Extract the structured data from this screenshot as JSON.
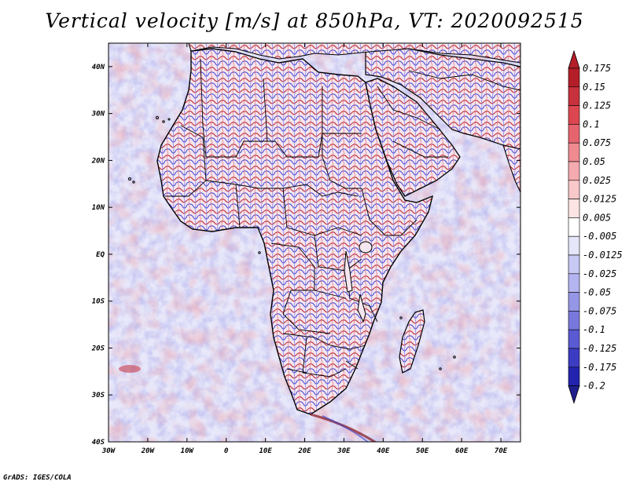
{
  "title": "Vertical velocity [m/s] at 850hPa, VT: 2020092515",
  "footer": "GrADS: IGES/COLA",
  "map": {
    "region": "Africa",
    "variable": "vertical velocity",
    "level": "850hPa",
    "valid_time": "2020092515",
    "lon_range": [
      -30,
      75
    ],
    "lat_range": [
      -40,
      45
    ],
    "x_ticks": [
      "30W",
      "20W",
      "10W",
      "0",
      "10E",
      "20E",
      "30E",
      "40E",
      "50E",
      "60E",
      "70E"
    ],
    "y_ticks": [
      "40N",
      "30N",
      "20N",
      "10N",
      "EQ",
      "10S",
      "20S",
      "30S",
      "40S"
    ]
  },
  "colorbar": {
    "labels": [
      "0.175",
      "0.15",
      "0.125",
      "0.1",
      "0.075",
      "0.05",
      "0.025",
      "0.0125",
      "0.005",
      "-0.005",
      "-0.0125",
      "-0.025",
      "-0.05",
      "-0.075",
      "-0.1",
      "-0.125",
      "-0.175",
      "-0.2"
    ],
    "colors": [
      "#b41e28",
      "#c8323c",
      "#dc4650",
      "#e6646e",
      "#ee8a90",
      "#f4aaae",
      "#f8c8ca",
      "#fce4e4",
      "#ffffff",
      "#e6e6fa",
      "#c8c8f5",
      "#b4b4f0",
      "#9696e6",
      "#7878dc",
      "#5a5ad2",
      "#3c3cc3",
      "#2323af",
      "#1e1e8c"
    ]
  },
  "colors": {
    "border": "#000000",
    "positive": "#c8323c",
    "negative": "#3c3cc3"
  }
}
